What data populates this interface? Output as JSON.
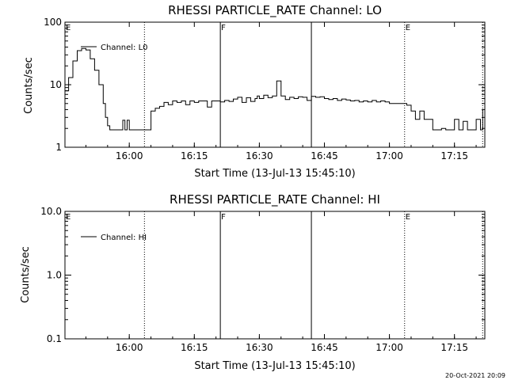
{
  "chart_data": [
    {
      "type": "line",
      "title": "RHESSI PARTICLE_RATE Channel: LO",
      "xlabel": "Start Time (13-Jul-13 15:45:10)",
      "ylabel": "Counts/sec",
      "yscale": "log",
      "ylim": [
        1,
        100
      ],
      "xlim": [
        "15:45:10",
        "17:22:00"
      ],
      "yticks": [
        "1",
        "10",
        "100"
      ],
      "xticks": [
        "16:00",
        "16:15",
        "16:30",
        "16:45",
        "17:00",
        "17:15"
      ],
      "legend": "Channel: L0",
      "series": [
        {
          "name": "Channel: L0",
          "x": [
            "15:45:10",
            "15:46:00",
            "15:47:00",
            "15:48:00",
            "15:49:00",
            "15:50:00",
            "15:51:00",
            "15:52:00",
            "15:53:00",
            "15:54:00",
            "15:54:30",
            "15:55:00",
            "15:55:30",
            "15:56:00",
            "15:57:00",
            "15:58:00",
            "15:58:30",
            "15:59:00",
            "15:59:30",
            "16:00:00",
            "16:01:00",
            "16:02:00",
            "16:03:00",
            "16:04:00",
            "16:05:00",
            "16:06:00",
            "16:07:00",
            "16:08:00",
            "16:09:00",
            "16:10:00",
            "16:11:00",
            "16:12:00",
            "16:13:00",
            "16:14:00",
            "16:15:00",
            "16:16:00",
            "16:17:00",
            "16:18:00",
            "16:19:00",
            "16:20:00",
            "16:21:00",
            "16:22:00",
            "16:23:00",
            "16:24:00",
            "16:25:00",
            "16:26:00",
            "16:27:00",
            "16:28:00",
            "16:29:00",
            "16:29:30",
            "16:30:00",
            "16:31:00",
            "16:32:00",
            "16:33:00",
            "16:34:00",
            "16:35:00",
            "16:36:00",
            "16:37:00",
            "16:38:00",
            "16:39:00",
            "16:40:00",
            "16:41:00",
            "16:42:00",
            "16:43:00",
            "16:44:00",
            "16:45:00",
            "16:46:00",
            "16:47:00",
            "16:48:00",
            "16:49:00",
            "16:50:00",
            "16:51:00",
            "16:52:00",
            "16:53:00",
            "16:54:00",
            "16:55:00",
            "16:56:00",
            "16:57:00",
            "16:58:00",
            "16:59:00",
            "17:00:00",
            "17:01:00",
            "17:02:00",
            "17:03:00",
            "17:03:30",
            "17:04:00",
            "17:05:00",
            "17:06:00",
            "17:07:00",
            "17:08:00",
            "17:09:00",
            "17:10:00",
            "17:10:30",
            "17:11:00",
            "17:11:30",
            "17:12:00",
            "17:13:00",
            "17:14:00",
            "17:15:00",
            "17:16:00",
            "17:17:00",
            "17:18:00",
            "17:19:00",
            "17:20:00",
            "17:21:00",
            "17:21:30"
          ],
          "values": [
            8,
            13,
            24,
            35,
            38,
            36,
            26,
            17,
            10,
            5,
            3,
            2.2,
            1.9,
            1.9,
            1.9,
            1.9,
            2.7,
            1.9,
            2.7,
            1.9,
            1.9,
            1.9,
            1.9,
            1.9,
            3.8,
            4.2,
            4.5,
            5.2,
            4.8,
            5.5,
            5.2,
            5.5,
            4.8,
            5.5,
            5.2,
            5.5,
            5.5,
            4.4,
            5.5,
            5.5,
            5.3,
            5.6,
            5.4,
            5.9,
            6.3,
            5.2,
            6.2,
            5.4,
            6.0,
            6.6,
            6.0,
            6.8,
            6.2,
            6.6,
            11.5,
            6.6,
            5.8,
            6.3,
            6.0,
            6.4,
            6.3,
            5.6,
            6.5,
            6.3,
            6.4,
            6.0,
            5.8,
            6.0,
            5.6,
            5.9,
            5.7,
            5.5,
            5.6,
            5.3,
            5.5,
            5.3,
            5.6,
            5.3,
            5.5,
            5.3,
            5.0,
            5.0,
            5.0,
            5.0,
            5.0,
            4.7,
            3.8,
            2.8,
            3.8,
            2.8,
            2.8,
            1.9,
            1.9,
            1.9,
            1.9,
            2.0,
            1.9,
            1.9,
            2.8,
            1.9,
            2.6,
            1.9,
            1.9,
            2.8,
            1.9,
            4.0
          ]
        }
      ],
      "annotations": [
        {
          "label": "E",
          "x": "15:45:10",
          "line": "none"
        },
        {
          "label": "F",
          "x": "16:21:00",
          "line": "solid"
        },
        {
          "label": "",
          "x": "16:42:00",
          "line": "solid"
        },
        {
          "label": "E",
          "x": "17:03:30",
          "line": "dotted"
        },
        {
          "label": "",
          "x": "16:03:30",
          "line": "dotted"
        },
        {
          "label": "",
          "x": "17:21:30",
          "line": "dotted"
        }
      ]
    },
    {
      "type": "line",
      "title": "RHESSI PARTICLE_RATE Channel: HI",
      "xlabel": "Start Time (13-Jul-13 15:45:10)",
      "ylabel": "Counts/sec",
      "yscale": "log",
      "ylim": [
        0.1,
        10
      ],
      "xlim": [
        "15:45:10",
        "17:22:00"
      ],
      "yticks": [
        "0.1",
        "1.0",
        "10.0"
      ],
      "xticks": [
        "16:00",
        "16:15",
        "16:30",
        "16:45",
        "17:00",
        "17:15"
      ],
      "legend": "Channel: HI",
      "series": [
        {
          "name": "Channel: HI",
          "x": [],
          "values": []
        }
      ],
      "annotations": [
        {
          "label": "E",
          "x": "15:45:10",
          "line": "none"
        },
        {
          "label": "F",
          "x": "16:21:00",
          "line": "solid"
        },
        {
          "label": "",
          "x": "16:42:00",
          "line": "solid"
        },
        {
          "label": "E",
          "x": "17:03:30",
          "line": "dotted"
        },
        {
          "label": "",
          "x": "16:03:30",
          "line": "dotted"
        },
        {
          "label": "",
          "x": "17:21:30",
          "line": "dotted"
        }
      ]
    }
  ],
  "footer": {
    "timestamp": "20-Oct-2021 20:09"
  }
}
